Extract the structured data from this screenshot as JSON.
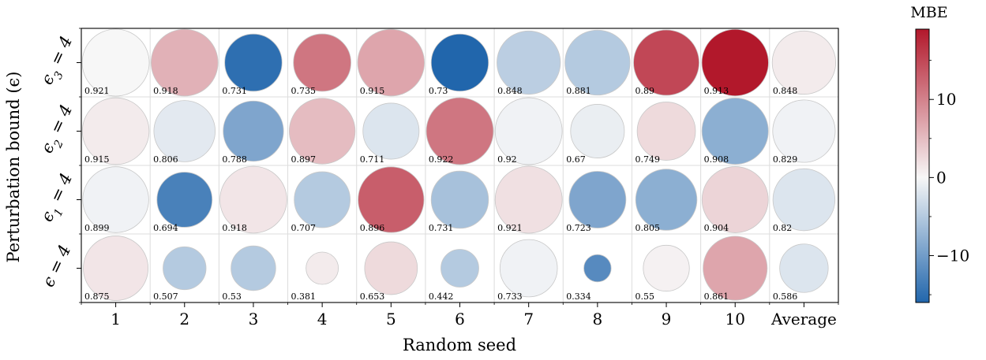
{
  "chart_data": {
    "type": "bubble-heatmap",
    "xlabel": "Random seed",
    "ylabel": "Perturbation bound (ϵ)",
    "colorbar_label": "MBE",
    "colorbar_ticks": [
      10,
      0,
      -10
    ],
    "colorbar_tick_labels": [
      "10",
      "0",
      "−10"
    ],
    "clim": [
      -16,
      19
    ],
    "colormap": [
      "#2166ac",
      "#f7f7f7",
      "#b2182b"
    ],
    "categories": [
      "1",
      "2",
      "3",
      "4",
      "5",
      "6",
      "7",
      "8",
      "9",
      "10",
      "Average"
    ],
    "rows": [
      {
        "main": "ϵ",
        "sub": "3",
        "eq": " = 4",
        "values": [
          0.921,
          0.918,
          0.731,
          0.735,
          0.915,
          0.73,
          0.848,
          0.881,
          0.89,
          0.913,
          0.848
        ],
        "labels": [
          "0.921",
          "0.918",
          "0.731",
          "0.735",
          "0.915",
          "0.73",
          "0.848",
          "0.881",
          "0.89",
          "0.913",
          "0.848"
        ],
        "mbe": [
          0,
          6,
          -15,
          11,
          7,
          -16,
          -4.5,
          -5,
          15,
          19,
          1
        ]
      },
      {
        "main": "ϵ",
        "sub": "2",
        "eq": " = 4",
        "values": [
          0.915,
          0.806,
          0.788,
          0.897,
          0.711,
          0.922,
          0.92,
          0.67,
          0.749,
          0.908,
          0.829
        ],
        "labels": [
          "0.915",
          "0.806",
          "0.788",
          "0.897",
          "0.711",
          "0.922",
          "0.92",
          "0.67",
          "0.749",
          "0.908",
          "0.829"
        ],
        "mbe": [
          1,
          -1.5,
          -9,
          5,
          -2,
          11,
          -0.5,
          -1,
          2.5,
          -8,
          -0.5
        ]
      },
      {
        "main": "ϵ",
        "sub": "1",
        "eq": " = 4",
        "values": [
          0.899,
          0.694,
          0.918,
          0.707,
          0.896,
          0.731,
          0.921,
          0.723,
          0.805,
          0.904,
          0.82
        ],
        "labels": [
          "0.899",
          "0.694",
          "0.918",
          "0.707",
          "0.896",
          "0.731",
          "0.921",
          "0.723",
          "0.805",
          "0.904",
          "0.82"
        ],
        "mbe": [
          -0.5,
          -13,
          1.5,
          -5,
          13,
          -6,
          2,
          -9,
          -8,
          3,
          -2
        ]
      },
      {
        "main": "ϵ",
        "sub": "",
        "eq": " = 4",
        "values": [
          0.875,
          0.507,
          0.53,
          0.381,
          0.653,
          0.442,
          0.733,
          0.334,
          0.55,
          0.861,
          0.586
        ],
        "labels": [
          "0.875",
          "0.507",
          "0.53",
          "0.381",
          "0.653",
          "0.442",
          "0.733",
          "0.334",
          "0.55",
          "0.861",
          "0.586"
        ],
        "mbe": [
          1.5,
          -5,
          -5,
          1,
          2.5,
          -5,
          -0.5,
          -12,
          0.5,
          7,
          -2
        ]
      }
    ]
  }
}
